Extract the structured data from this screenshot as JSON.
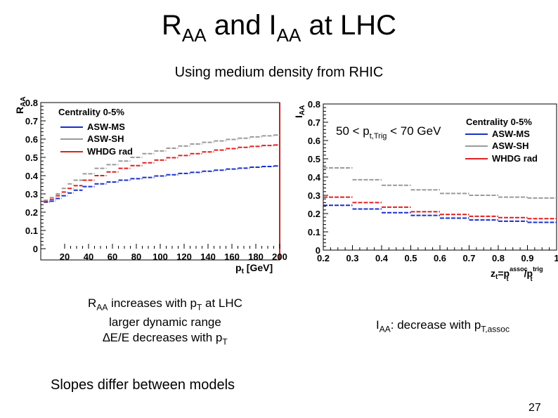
{
  "slide": {
    "title": {
      "main1": "R",
      "sub1": "AA",
      "main2": " and I",
      "sub2": "AA",
      "main3": " at LHC"
    },
    "subtitle": "Using medium density from RHIC",
    "notes_left": {
      "line1_a": "R",
      "line1_sub": "AA",
      "line1_b": " increases with p",
      "line1_sub2": "T",
      "line1_c": " at LHC",
      "line2": "larger dynamic range",
      "line3_a": "∆E/E decreases with p",
      "line3_sub": "T"
    },
    "notes_right": {
      "a": "I",
      "sub": "AA",
      "b": ": decrease with p",
      "sub2": "T,assoc"
    },
    "bottom_note": "Slopes differ between models",
    "page_number": "27"
  },
  "colors": {
    "asw_ms": "#1a2fc8",
    "asw_sh": "#9a9a9a",
    "whdg": "#dd2020",
    "frame": "#c82020"
  },
  "chart_data": [
    {
      "type": "line",
      "ylabel_main": "R",
      "ylabel_sub": "AA",
      "xlabel_main": "p",
      "xlabel_sub": "t",
      "xlabel_unit": " [GeV]",
      "xlim": [
        0,
        200
      ],
      "ylim": [
        0,
        0.8
      ],
      "xticks": [
        20,
        40,
        60,
        80,
        100,
        120,
        140,
        160,
        180,
        200
      ],
      "xtick_labels": [
        "20",
        "40",
        "60",
        "80",
        "100",
        "120",
        "140",
        "160",
        "180",
        "200"
      ],
      "yticks": [
        0,
        0.1,
        0.2,
        0.3,
        0.4,
        0.5,
        0.6,
        0.7,
        0.8
      ],
      "ytick_labels": [
        "0",
        "0.1",
        "0.2",
        "0.3",
        "0.4",
        "0.5",
        "0.6",
        "0.7",
        "0.8"
      ],
      "legend_title": "Centrality 0-5%",
      "series": [
        {
          "name": "ASW-MS",
          "x": [
            5,
            10,
            15,
            20,
            25,
            30,
            40,
            50,
            60,
            70,
            80,
            90,
            100,
            110,
            120,
            130,
            140,
            150,
            160,
            170,
            180,
            190,
            200
          ],
          "values": [
            0.255,
            0.26,
            0.275,
            0.29,
            0.305,
            0.32,
            0.34,
            0.355,
            0.365,
            0.375,
            0.383,
            0.39,
            0.398,
            0.405,
            0.412,
            0.418,
            0.424,
            0.43,
            0.436,
            0.441,
            0.446,
            0.45,
            0.453
          ]
        },
        {
          "name": "ASW-SH",
          "x": [
            5,
            10,
            15,
            20,
            25,
            30,
            40,
            50,
            60,
            70,
            80,
            90,
            100,
            110,
            120,
            130,
            140,
            150,
            160,
            170,
            180,
            190,
            200
          ],
          "values": [
            0.265,
            0.28,
            0.3,
            0.33,
            0.355,
            0.375,
            0.41,
            0.44,
            0.46,
            0.48,
            0.5,
            0.52,
            0.535,
            0.55,
            0.562,
            0.573,
            0.582,
            0.59,
            0.598,
            0.605,
            0.612,
            0.618,
            0.622
          ]
        },
        {
          "name": "WHDG rad",
          "x": [
            5,
            10,
            15,
            20,
            25,
            30,
            40,
            50,
            60,
            70,
            80,
            90,
            100,
            110,
            120,
            130,
            140,
            150,
            160,
            170,
            180,
            190,
            200
          ],
          "values": [
            0.258,
            0.27,
            0.29,
            0.31,
            0.33,
            0.345,
            0.375,
            0.4,
            0.42,
            0.44,
            0.455,
            0.47,
            0.485,
            0.498,
            0.51,
            0.52,
            0.53,
            0.54,
            0.548,
            0.555,
            0.56,
            0.565,
            0.568
          ]
        }
      ]
    },
    {
      "type": "line",
      "ylabel_main": "I",
      "ylabel_sub": "AA",
      "xlabel_lhs": "z",
      "xlabel_lhs_sub": "t",
      "xlabel_eq": "=p",
      "xlabel_sup1": "assoc",
      "xlabel_sub1": "t",
      "xlabel_div": "/p",
      "xlabel_sup2": "trig",
      "xlabel_sub2": "t",
      "annotation_a": "50 < p",
      "annotation_sub": "t,Trig",
      "annotation_b": " < 70 GeV",
      "xlim": [
        0.2,
        1.0
      ],
      "ylim": [
        0,
        0.8
      ],
      "xticks": [
        0.2,
        0.3,
        0.4,
        0.5,
        0.6,
        0.7,
        0.8,
        0.9,
        1.0
      ],
      "xtick_labels": [
        "0.2",
        "0.3",
        "0.4",
        "0.5",
        "0.6",
        "0.7",
        "0.8",
        "0.9",
        "1"
      ],
      "yticks": [
        0,
        0.1,
        0.2,
        0.3,
        0.4,
        0.5,
        0.6,
        0.7,
        0.8
      ],
      "ytick_labels": [
        "0",
        "0.1",
        "0.2",
        "0.3",
        "0.4",
        "0.5",
        "0.6",
        "0.7",
        "0.8"
      ],
      "legend_title": "Centrality 0-5%",
      "series": [
        {
          "name": "ASW-MS",
          "x": [
            0.25,
            0.35,
            0.45,
            0.55,
            0.65,
            0.75,
            0.85,
            0.95
          ],
          "values": [
            0.245,
            0.225,
            0.205,
            0.19,
            0.175,
            0.165,
            0.158,
            0.152
          ]
        },
        {
          "name": "ASW-SH",
          "x": [
            0.25,
            0.35,
            0.45,
            0.55,
            0.65,
            0.75,
            0.85,
            0.95
          ],
          "values": [
            0.45,
            0.385,
            0.355,
            0.33,
            0.31,
            0.3,
            0.29,
            0.285
          ]
        },
        {
          "name": "WHDG rad",
          "x": [
            0.25,
            0.35,
            0.45,
            0.55,
            0.65,
            0.75,
            0.85,
            0.95
          ],
          "values": [
            0.29,
            0.26,
            0.235,
            0.21,
            0.195,
            0.185,
            0.178,
            0.172
          ]
        }
      ]
    }
  ]
}
